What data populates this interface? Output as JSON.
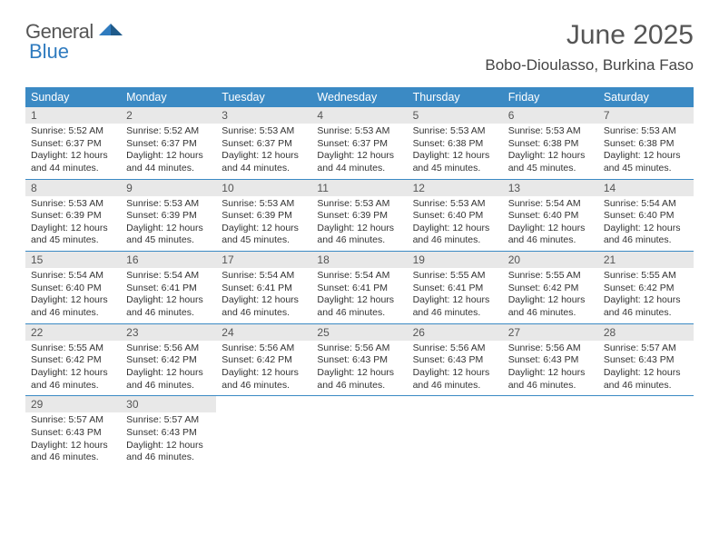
{
  "brand": {
    "part1": "General",
    "part2": "Blue"
  },
  "title": "June 2025",
  "location": "Bobo-Dioulasso, Burkina Faso",
  "colors": {
    "header_bg": "#3b8ac4",
    "header_text": "#ffffff",
    "daynum_bg": "#e8e8e8",
    "week_border": "#3b8ac4",
    "text": "#333333",
    "title_text": "#555555"
  },
  "fonts": {
    "body_size": 10.5,
    "title_size": 30,
    "location_size": 17,
    "weekday_size": 12.5
  },
  "weekdays": [
    "Sunday",
    "Monday",
    "Tuesday",
    "Wednesday",
    "Thursday",
    "Friday",
    "Saturday"
  ],
  "days": [
    {
      "n": 1,
      "sunrise": "5:52 AM",
      "sunset": "6:37 PM",
      "dl_h": 12,
      "dl_m": 44
    },
    {
      "n": 2,
      "sunrise": "5:52 AM",
      "sunset": "6:37 PM",
      "dl_h": 12,
      "dl_m": 44
    },
    {
      "n": 3,
      "sunrise": "5:53 AM",
      "sunset": "6:37 PM",
      "dl_h": 12,
      "dl_m": 44
    },
    {
      "n": 4,
      "sunrise": "5:53 AM",
      "sunset": "6:37 PM",
      "dl_h": 12,
      "dl_m": 44
    },
    {
      "n": 5,
      "sunrise": "5:53 AM",
      "sunset": "6:38 PM",
      "dl_h": 12,
      "dl_m": 45
    },
    {
      "n": 6,
      "sunrise": "5:53 AM",
      "sunset": "6:38 PM",
      "dl_h": 12,
      "dl_m": 45
    },
    {
      "n": 7,
      "sunrise": "5:53 AM",
      "sunset": "6:38 PM",
      "dl_h": 12,
      "dl_m": 45
    },
    {
      "n": 8,
      "sunrise": "5:53 AM",
      "sunset": "6:39 PM",
      "dl_h": 12,
      "dl_m": 45
    },
    {
      "n": 9,
      "sunrise": "5:53 AM",
      "sunset": "6:39 PM",
      "dl_h": 12,
      "dl_m": 45
    },
    {
      "n": 10,
      "sunrise": "5:53 AM",
      "sunset": "6:39 PM",
      "dl_h": 12,
      "dl_m": 45
    },
    {
      "n": 11,
      "sunrise": "5:53 AM",
      "sunset": "6:39 PM",
      "dl_h": 12,
      "dl_m": 46
    },
    {
      "n": 12,
      "sunrise": "5:53 AM",
      "sunset": "6:40 PM",
      "dl_h": 12,
      "dl_m": 46
    },
    {
      "n": 13,
      "sunrise": "5:54 AM",
      "sunset": "6:40 PM",
      "dl_h": 12,
      "dl_m": 46
    },
    {
      "n": 14,
      "sunrise": "5:54 AM",
      "sunset": "6:40 PM",
      "dl_h": 12,
      "dl_m": 46
    },
    {
      "n": 15,
      "sunrise": "5:54 AM",
      "sunset": "6:40 PM",
      "dl_h": 12,
      "dl_m": 46
    },
    {
      "n": 16,
      "sunrise": "5:54 AM",
      "sunset": "6:41 PM",
      "dl_h": 12,
      "dl_m": 46
    },
    {
      "n": 17,
      "sunrise": "5:54 AM",
      "sunset": "6:41 PM",
      "dl_h": 12,
      "dl_m": 46
    },
    {
      "n": 18,
      "sunrise": "5:54 AM",
      "sunset": "6:41 PM",
      "dl_h": 12,
      "dl_m": 46
    },
    {
      "n": 19,
      "sunrise": "5:55 AM",
      "sunset": "6:41 PM",
      "dl_h": 12,
      "dl_m": 46
    },
    {
      "n": 20,
      "sunrise": "5:55 AM",
      "sunset": "6:42 PM",
      "dl_h": 12,
      "dl_m": 46
    },
    {
      "n": 21,
      "sunrise": "5:55 AM",
      "sunset": "6:42 PM",
      "dl_h": 12,
      "dl_m": 46
    },
    {
      "n": 22,
      "sunrise": "5:55 AM",
      "sunset": "6:42 PM",
      "dl_h": 12,
      "dl_m": 46
    },
    {
      "n": 23,
      "sunrise": "5:56 AM",
      "sunset": "6:42 PM",
      "dl_h": 12,
      "dl_m": 46
    },
    {
      "n": 24,
      "sunrise": "5:56 AM",
      "sunset": "6:42 PM",
      "dl_h": 12,
      "dl_m": 46
    },
    {
      "n": 25,
      "sunrise": "5:56 AM",
      "sunset": "6:43 PM",
      "dl_h": 12,
      "dl_m": 46
    },
    {
      "n": 26,
      "sunrise": "5:56 AM",
      "sunset": "6:43 PM",
      "dl_h": 12,
      "dl_m": 46
    },
    {
      "n": 27,
      "sunrise": "5:56 AM",
      "sunset": "6:43 PM",
      "dl_h": 12,
      "dl_m": 46
    },
    {
      "n": 28,
      "sunrise": "5:57 AM",
      "sunset": "6:43 PM",
      "dl_h": 12,
      "dl_m": 46
    },
    {
      "n": 29,
      "sunrise": "5:57 AM",
      "sunset": "6:43 PM",
      "dl_h": 12,
      "dl_m": 46
    },
    {
      "n": 30,
      "sunrise": "5:57 AM",
      "sunset": "6:43 PM",
      "dl_h": 12,
      "dl_m": 46
    }
  ],
  "labels": {
    "sunrise": "Sunrise:",
    "sunset": "Sunset:",
    "daylight": "Daylight:",
    "hours": "hours",
    "and": "and",
    "minutes": "minutes."
  }
}
